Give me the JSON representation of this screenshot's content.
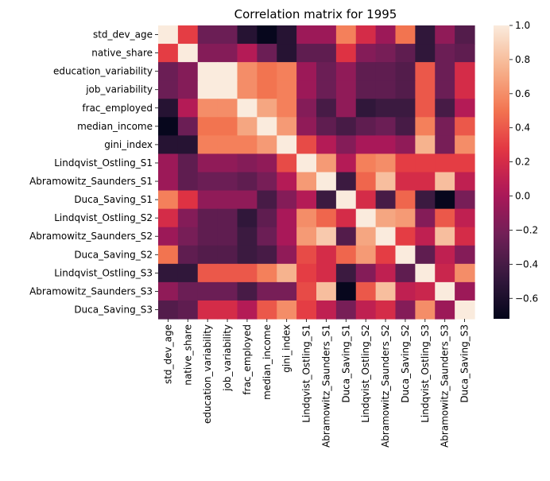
{
  "chart_data": {
    "type": "heatmap",
    "title": "Correlation matrix for 1995",
    "xlabel": "",
    "ylabel": "",
    "labels": [
      "std_dev_age",
      "native_share",
      "education_variability",
      "job_variability",
      "frac_employed",
      "median_income",
      "gini_index",
      "Lindqvist_Ostling_S1",
      "Abramowitz_Saunders_S1",
      "Duca_Saving_S1",
      "Lindqvist_Ostling_S2",
      "Abramowitz_Saunders_S2",
      "Duca_Saving_S2",
      "Lindqvist_Ostling_S3",
      "Abramowitz_Saunders_S3",
      "Duca_Saving_S3"
    ],
    "values": [
      [
        1.0,
        0.3,
        -0.25,
        -0.25,
        -0.55,
        -0.7,
        -0.55,
        -0.05,
        -0.05,
        0.55,
        0.2,
        -0.05,
        0.5,
        -0.5,
        -0.1,
        -0.35
      ],
      [
        0.3,
        1.0,
        -0.15,
        -0.15,
        0.05,
        -0.25,
        -0.55,
        -0.3,
        -0.3,
        0.25,
        -0.15,
        -0.2,
        -0.3,
        -0.5,
        -0.25,
        -0.3
      ],
      [
        -0.25,
        -0.15,
        1.0,
        1.0,
        0.6,
        0.5,
        0.55,
        -0.05,
        -0.25,
        -0.1,
        -0.3,
        -0.3,
        -0.35,
        0.4,
        -0.25,
        0.2
      ],
      [
        -0.25,
        -0.15,
        1.0,
        1.0,
        0.6,
        0.5,
        0.55,
        -0.05,
        -0.25,
        -0.1,
        -0.3,
        -0.3,
        -0.35,
        0.4,
        -0.25,
        0.2
      ],
      [
        -0.55,
        0.05,
        0.6,
        0.6,
        1.0,
        0.7,
        0.55,
        -0.15,
        -0.4,
        -0.1,
        -0.5,
        -0.45,
        -0.45,
        0.4,
        -0.4,
        0.05
      ],
      [
        -0.7,
        -0.25,
        0.5,
        0.5,
        0.7,
        1.0,
        0.65,
        -0.1,
        -0.3,
        -0.4,
        -0.3,
        -0.25,
        -0.4,
        0.55,
        -0.2,
        0.4
      ],
      [
        -0.55,
        -0.55,
        0.55,
        0.55,
        0.55,
        0.65,
        1.0,
        0.35,
        0.05,
        -0.15,
        0.0,
        0.0,
        -0.1,
        0.75,
        -0.2,
        0.6
      ],
      [
        -0.05,
        -0.3,
        -0.1,
        -0.1,
        -0.15,
        -0.1,
        0.35,
        1.0,
        0.65,
        0.05,
        0.55,
        0.6,
        0.3,
        0.3,
        0.3,
        0.3
      ],
      [
        -0.05,
        -0.3,
        -0.25,
        -0.25,
        -0.3,
        -0.2,
        0.05,
        0.65,
        1.0,
        -0.45,
        0.45,
        0.8,
        0.2,
        0.2,
        0.8,
        0.1
      ],
      [
        0.55,
        0.25,
        -0.1,
        -0.1,
        -0.1,
        -0.4,
        -0.15,
        0.05,
        -0.45,
        1.0,
        0.2,
        -0.4,
        0.45,
        -0.45,
        -0.7,
        -0.2
      ],
      [
        0.2,
        -0.15,
        -0.3,
        -0.3,
        -0.5,
        -0.3,
        0.0,
        0.6,
        0.45,
        0.2,
        1.0,
        0.7,
        0.65,
        -0.15,
        0.4,
        0.1
      ],
      [
        -0.05,
        -0.2,
        -0.3,
        -0.3,
        -0.45,
        -0.25,
        0.0,
        0.65,
        0.85,
        -0.35,
        0.7,
        1.0,
        0.3,
        0.1,
        0.8,
        0.2
      ],
      [
        0.5,
        -0.3,
        -0.35,
        -0.35,
        -0.45,
        -0.4,
        -0.1,
        0.35,
        0.2,
        0.45,
        0.65,
        0.3,
        1.0,
        -0.3,
        0.1,
        -0.15
      ],
      [
        -0.5,
        -0.5,
        0.4,
        0.4,
        0.4,
        0.55,
        0.75,
        0.3,
        0.2,
        -0.45,
        -0.15,
        0.1,
        -0.3,
        1.0,
        0.15,
        0.6
      ],
      [
        -0.1,
        -0.25,
        -0.25,
        -0.25,
        -0.4,
        -0.2,
        -0.2,
        0.35,
        0.8,
        -0.7,
        0.4,
        0.8,
        0.1,
        0.15,
        1.0,
        -0.05
      ],
      [
        -0.35,
        -0.3,
        0.2,
        0.2,
        0.05,
        0.4,
        0.6,
        0.3,
        0.1,
        -0.2,
        0.1,
        0.2,
        -0.15,
        0.6,
        -0.05,
        1.0
      ]
    ],
    "color_scale": {
      "name": "rocket",
      "vmin": -0.72,
      "vmax": 1.0,
      "ticks": [
        -0.6,
        -0.4,
        -0.2,
        0.0,
        0.2,
        0.4,
        0.6,
        0.8,
        1.0
      ],
      "tick_labels": [
        "−0.6",
        "−0.4",
        "−0.2",
        "0.0",
        "0.2",
        "0.4",
        "0.6",
        "0.8",
        "1.0"
      ],
      "stops": [
        "#03051a",
        "#35193e",
        "#701f57",
        "#ad1759",
        "#e13342",
        "#f37651",
        "#f6b48f",
        "#faebdd"
      ]
    },
    "grid": false,
    "legend": "colorbar-right"
  }
}
